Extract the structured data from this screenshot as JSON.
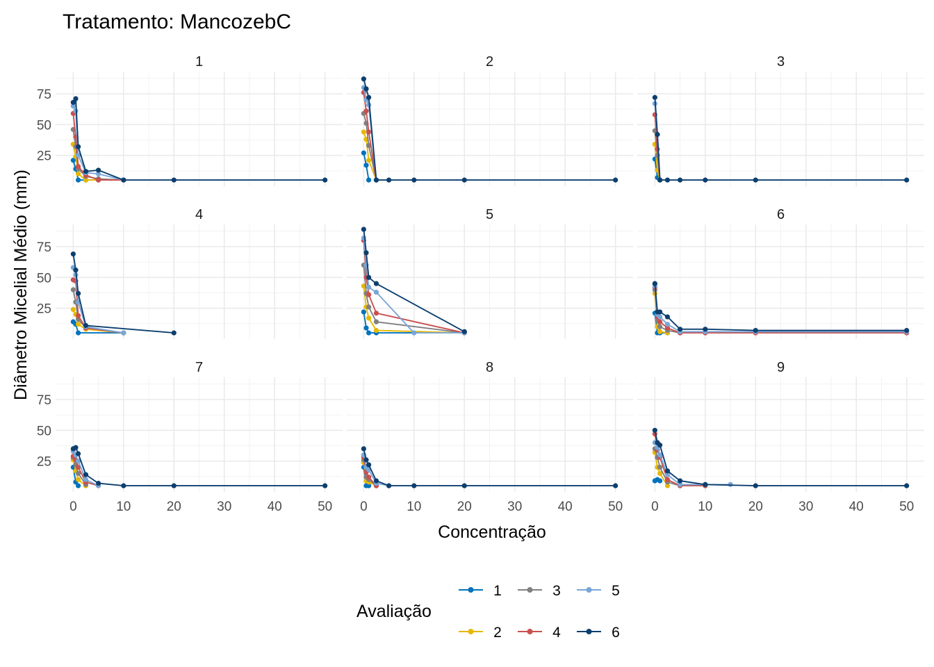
{
  "chart_data": {
    "type": "line",
    "title": "Tratamento: MancozebC",
    "xlabel": "Concentração",
    "ylabel": "Diâmetro Micelial Médio (mm)",
    "xlim": [
      -3.5,
      53.5
    ],
    "ylim": [
      0,
      93
    ],
    "x_ticks": [
      0,
      10,
      20,
      30,
      40,
      50
    ],
    "y_ticks": [
      25,
      50,
      75
    ],
    "grid": true,
    "legend": {
      "title": "Avaliação",
      "position": "bottom",
      "entries": [
        "1",
        "2",
        "3",
        "4",
        "5",
        "6"
      ]
    },
    "colors": {
      "1": "#0072bd",
      "2": "#e6b800",
      "3": "#808080",
      "4": "#c9504e",
      "5": "#79a6d8",
      "6": "#0c3f6e"
    },
    "panels": [
      {
        "label": "1",
        "series": [
          {
            "name": "1",
            "x": [
              0,
              0.5,
              1,
              2.5,
              5,
              10
            ],
            "y": [
              21,
              14,
              5,
              5,
              5,
              5
            ]
          },
          {
            "name": "2",
            "x": [
              0,
              0.5,
              1,
              2.5,
              5,
              10
            ],
            "y": [
              34,
              24,
              10,
              5,
              5,
              5
            ]
          },
          {
            "name": "3",
            "x": [
              0,
              0.5,
              1,
              2.5,
              5,
              10
            ],
            "y": [
              46,
              32,
              14,
              8,
              6,
              5
            ]
          },
          {
            "name": "4",
            "x": [
              0,
              0.5,
              1,
              2.5,
              5,
              10
            ],
            "y": [
              59,
              40,
              16,
              9,
              5,
              5
            ]
          },
          {
            "name": "5",
            "x": [
              0,
              0.5,
              1,
              2.5,
              5,
              10
            ],
            "y": [
              65,
              61,
              25,
              11,
              10,
              5
            ]
          },
          {
            "name": "6",
            "x": [
              0,
              0.5,
              1,
              2.5,
              5,
              10,
              20,
              50
            ],
            "y": [
              68,
              71,
              32,
              12,
              13,
              5,
              5,
              5
            ]
          }
        ]
      },
      {
        "label": "2",
        "series": [
          {
            "name": "1",
            "x": [
              0,
              0.5,
              1
            ],
            "y": [
              27,
              17,
              5
            ]
          },
          {
            "name": "2",
            "x": [
              0,
              0.5,
              1,
              2.5
            ],
            "y": [
              44,
              38,
              21,
              5
            ]
          },
          {
            "name": "3",
            "x": [
              0,
              0.5,
              1,
              2.5
            ],
            "y": [
              59,
              51,
              33,
              5
            ]
          },
          {
            "name": "4",
            "x": [
              0,
              0.5,
              1,
              2.5
            ],
            "y": [
              76,
              61,
              44,
              5
            ]
          },
          {
            "name": "5",
            "x": [
              0,
              0.5,
              1,
              2.5
            ],
            "y": [
              80,
              70,
              66,
              5
            ]
          },
          {
            "name": "6",
            "x": [
              0,
              0.5,
              1,
              2.5,
              5,
              10,
              20,
              50
            ],
            "y": [
              87,
              79,
              72,
              5,
              5,
              5,
              5,
              5
            ]
          }
        ]
      },
      {
        "label": "3",
        "series": [
          {
            "name": "1",
            "x": [
              0,
              0.5,
              1
            ],
            "y": [
              22,
              7,
              5
            ]
          },
          {
            "name": "2",
            "x": [
              0,
              0.5,
              1
            ],
            "y": [
              34,
              13,
              5
            ]
          },
          {
            "name": "3",
            "x": [
              0,
              0.5,
              1
            ],
            "y": [
              45,
              25,
              5
            ]
          },
          {
            "name": "4",
            "x": [
              0,
              0.5,
              1
            ],
            "y": [
              58,
              30,
              5
            ]
          },
          {
            "name": "5",
            "x": [
              0,
              0.5,
              1
            ],
            "y": [
              67,
              42,
              5
            ]
          },
          {
            "name": "6",
            "x": [
              0,
              0.5,
              1,
              2.5,
              5,
              10,
              20,
              50
            ],
            "y": [
              72,
              42,
              5,
              5,
              5,
              5,
              5,
              5
            ]
          }
        ]
      },
      {
        "label": "4",
        "series": [
          {
            "name": "1",
            "x": [
              0,
              0.5,
              1,
              10
            ],
            "y": [
              14,
              12,
              5,
              5
            ]
          },
          {
            "name": "2",
            "x": [
              0,
              0.5,
              1,
              2.5,
              10
            ],
            "y": [
              24,
              20,
              12,
              8,
              5
            ]
          },
          {
            "name": "3",
            "x": [
              0,
              0.5,
              1,
              2.5,
              10
            ],
            "y": [
              40,
              30,
              16,
              9,
              5
            ]
          },
          {
            "name": "4",
            "x": [
              0,
              0.5,
              1,
              2.5,
              10
            ],
            "y": [
              48,
              47,
              19,
              9,
              5
            ]
          },
          {
            "name": "5",
            "x": [
              0,
              0.5,
              1,
              2.5,
              10
            ],
            "y": [
              58,
              52,
              30,
              10,
              5
            ]
          },
          {
            "name": "6",
            "x": [
              0,
              0.5,
              1,
              2.5,
              20
            ],
            "y": [
              69,
              56,
              37,
              11,
              5
            ]
          }
        ]
      },
      {
        "label": "5",
        "series": [
          {
            "name": "1",
            "x": [
              0,
              0.5,
              1,
              2.5,
              20
            ],
            "y": [
              22,
              9,
              5,
              5,
              5
            ]
          },
          {
            "name": "2",
            "x": [
              0,
              0.5,
              1,
              2.5,
              20
            ],
            "y": [
              43,
              26,
              17,
              7,
              5
            ]
          },
          {
            "name": "3",
            "x": [
              0,
              0.5,
              1,
              2.5,
              20
            ],
            "y": [
              60,
              37,
              26,
              14,
              5
            ]
          },
          {
            "name": "4",
            "x": [
              0,
              0.5,
              1,
              2.5,
              20
            ],
            "y": [
              80,
              50,
              36,
              21,
              5
            ]
          },
          {
            "name": "5",
            "x": [
              0,
              0.5,
              1,
              2.5,
              10,
              20
            ],
            "y": [
              82,
              60,
              42,
              38,
              5,
              5
            ]
          },
          {
            "name": "6",
            "x": [
              0,
              0.5,
              1,
              2.5,
              20
            ],
            "y": [
              89,
              70,
              50,
              45,
              6
            ]
          }
        ]
      },
      {
        "label": "6",
        "series": [
          {
            "name": "1",
            "x": [
              0,
              0.5,
              1,
              2.5
            ],
            "y": [
              21,
              5,
              5,
              5
            ]
          },
          {
            "name": "2",
            "x": [
              0,
              0.5,
              1,
              2.5
            ],
            "y": [
              37,
              10,
              6,
              5
            ]
          },
          {
            "name": "3",
            "x": [
              0,
              0.5,
              1,
              2.5,
              5
            ],
            "y": [
              40,
              15,
              10,
              7,
              5
            ]
          },
          {
            "name": "4",
            "x": [
              0,
              0.5,
              1,
              2.5,
              5,
              10,
              20,
              50
            ],
            "y": [
              42,
              18,
              14,
              9,
              5,
              5,
              5,
              5
            ]
          },
          {
            "name": "5",
            "x": [
              0,
              0.5,
              1,
              2.5,
              5,
              10,
              20,
              50
            ],
            "y": [
              43,
              20,
              18,
              12,
              6,
              6,
              6,
              6
            ]
          },
          {
            "name": "6",
            "x": [
              0,
              0.5,
              1,
              2.5,
              5,
              10,
              20,
              50
            ],
            "y": [
              45,
              22,
              22,
              18,
              8,
              8,
              7,
              7
            ]
          }
        ]
      },
      {
        "label": "7",
        "series": [
          {
            "name": "1",
            "x": [
              0,
              0.5,
              1
            ],
            "y": [
              20,
              8,
              5
            ]
          },
          {
            "name": "2",
            "x": [
              0,
              0.5,
              1,
              2.5
            ],
            "y": [
              26,
              17,
              10,
              5
            ]
          },
          {
            "name": "3",
            "x": [
              0,
              0.5,
              1,
              2.5
            ],
            "y": [
              28,
              22,
              15,
              6
            ]
          },
          {
            "name": "4",
            "x": [
              0,
              0.5,
              1,
              2.5,
              5
            ],
            "y": [
              29,
              26,
              20,
              8,
              5
            ]
          },
          {
            "name": "5",
            "x": [
              0,
              0.5,
              1,
              2.5,
              5
            ],
            "y": [
              33,
              30,
              25,
              10,
              5
            ]
          },
          {
            "name": "6",
            "x": [
              0,
              0.5,
              1,
              2.5,
              5,
              10,
              20,
              50
            ],
            "y": [
              35,
              36,
              31,
              14,
              7,
              5,
              5,
              5
            ]
          }
        ]
      },
      {
        "label": "8",
        "series": [
          {
            "name": "1",
            "x": [
              0,
              0.5,
              1
            ],
            "y": [
              20,
              5,
              5
            ]
          },
          {
            "name": "2",
            "x": [
              0,
              0.5,
              1,
              2.5
            ],
            "y": [
              24,
              9,
              8,
              5
            ]
          },
          {
            "name": "3",
            "x": [
              0,
              0.5,
              1,
              2.5
            ],
            "y": [
              26,
              12,
              10,
              5
            ]
          },
          {
            "name": "4",
            "x": [
              0,
              0.5,
              1,
              2.5
            ],
            "y": [
              28,
              16,
              12,
              5
            ]
          },
          {
            "name": "5",
            "x": [
              0,
              0.5,
              1,
              2.5,
              5
            ],
            "y": [
              30,
              20,
              18,
              7,
              5
            ]
          },
          {
            "name": "6",
            "x": [
              0,
              0.5,
              1,
              2.5,
              5,
              10,
              20,
              50
            ],
            "y": [
              35,
              26,
              22,
              9,
              5,
              5,
              5,
              5
            ]
          }
        ]
      },
      {
        "label": "9",
        "series": [
          {
            "name": "1",
            "x": [
              0,
              0.5,
              1
            ],
            "y": [
              9,
              10,
              9
            ]
          },
          {
            "name": "2",
            "x": [
              0,
              0.5,
              1,
              2.5
            ],
            "y": [
              32,
              20,
              15,
              5
            ]
          },
          {
            "name": "3",
            "x": [
              0,
              0.5,
              1,
              2.5,
              5
            ],
            "y": [
              35,
              28,
              20,
              8,
              5
            ]
          },
          {
            "name": "4",
            "x": [
              0,
              0.5,
              1,
              2.5,
              5,
              10
            ],
            "y": [
              47,
              34,
              28,
              10,
              5,
              5
            ]
          },
          {
            "name": "5",
            "x": [
              0,
              0.5,
              1,
              2.5,
              5,
              10,
              15
            ],
            "y": [
              40,
              36,
              30,
              14,
              6,
              6,
              6
            ]
          },
          {
            "name": "6",
            "x": [
              0,
              0.5,
              1,
              2.5,
              5,
              10,
              20,
              50
            ],
            "y": [
              50,
              40,
              38,
              17,
              9,
              6,
              5,
              5
            ]
          }
        ]
      }
    ]
  }
}
